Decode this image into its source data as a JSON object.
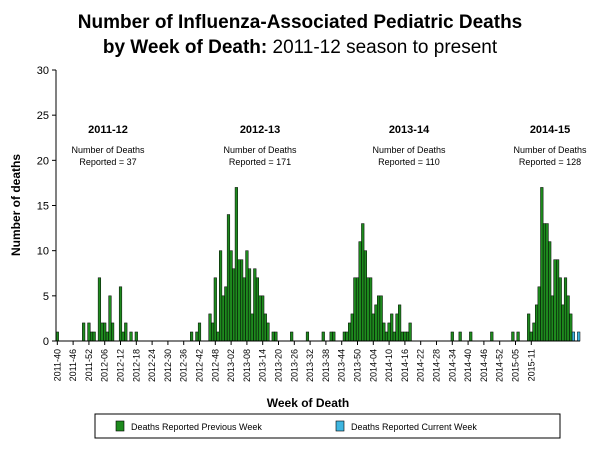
{
  "title": {
    "line1": "Number of Influenza-Associated Pediatric Deaths",
    "line2_bold": "by Week of Death:",
    "line2_rest": " 2011-12 season to present"
  },
  "chart_data": {
    "type": "bar",
    "ylabel": "Number of deaths",
    "xlabel": "Week of Death",
    "ylim": [
      0,
      30
    ],
    "yticks": [
      0,
      5,
      10,
      15,
      20,
      25,
      30
    ],
    "grid": false,
    "x_tick_labels": [
      "2011-40",
      "2011-46",
      "2011-52",
      "2012-06",
      "2012-12",
      "2012-18",
      "2012-24",
      "2012-30",
      "2012-36",
      "2012-42",
      "2012-48",
      "2013-02",
      "2013-08",
      "2013-14",
      "2013-20",
      "2013-26",
      "2013-32",
      "2013-38",
      "2013-44",
      "2013-50",
      "2014-04",
      "2014-10",
      "2014-16",
      "2014-22",
      "2014-28",
      "2014-34",
      "2014-40",
      "2014-46",
      "2014-52",
      "2015-05",
      "2015-11"
    ],
    "series": [
      {
        "name": "Deaths Reported Previous Week",
        "color": "#1e8a1e",
        "values": [
          1,
          0,
          0,
          0,
          0,
          0,
          0,
          0,
          0,
          0,
          2,
          0,
          2,
          1,
          1,
          0,
          7,
          2,
          2,
          1,
          5,
          2,
          0,
          0,
          6,
          1,
          2,
          0,
          1,
          0,
          1,
          0,
          0,
          0,
          0,
          0,
          0,
          0,
          0,
          0,
          0,
          0,
          0,
          0,
          0,
          0,
          0,
          0,
          0,
          0,
          0,
          1,
          0,
          1,
          2,
          0,
          0,
          0,
          3,
          2,
          7,
          1,
          10,
          5,
          6,
          14,
          10,
          8,
          17,
          9,
          9,
          7,
          10,
          8,
          3,
          8,
          7,
          5,
          5,
          3,
          2,
          0,
          1,
          1,
          0,
          0,
          0,
          0,
          0,
          1,
          0,
          0,
          0,
          0,
          0,
          1,
          0,
          0,
          0,
          0,
          0,
          1,
          0,
          0,
          1,
          1,
          0,
          0,
          0,
          1,
          1,
          2,
          3,
          7,
          7,
          11,
          13,
          10,
          7,
          7,
          3,
          4,
          5,
          5,
          2,
          1,
          2,
          3,
          1,
          3,
          4,
          1,
          1,
          1,
          2,
          0,
          0,
          0,
          0,
          0,
          0,
          0,
          0,
          0,
          0,
          0,
          0,
          0,
          0,
          0,
          1,
          0,
          0,
          1,
          0,
          0,
          0,
          1,
          0,
          0,
          0,
          0,
          0,
          0,
          0,
          1,
          0,
          0,
          0,
          0,
          0,
          0,
          0,
          1,
          0,
          1,
          0,
          0,
          0,
          3,
          1,
          2,
          4,
          6,
          17,
          13,
          13,
          11,
          5,
          9,
          9,
          7,
          4,
          7,
          5,
          3,
          0,
          0,
          0
        ]
      },
      {
        "name": "Deaths Reported Current Week",
        "color": "#3fb6e0",
        "values": [
          0,
          0,
          0,
          0,
          0,
          0,
          0,
          0,
          0,
          0,
          0,
          0,
          0,
          0,
          0,
          0,
          0,
          0,
          0,
          0,
          0,
          0,
          0,
          0,
          0,
          0,
          0,
          0,
          0,
          0,
          0,
          0,
          0,
          0,
          0,
          0,
          0,
          0,
          0,
          0,
          0,
          0,
          0,
          0,
          0,
          0,
          0,
          0,
          0,
          0,
          0,
          0,
          0,
          0,
          0,
          0,
          0,
          0,
          0,
          0,
          0,
          0,
          0,
          0,
          0,
          0,
          0,
          0,
          0,
          0,
          0,
          0,
          0,
          0,
          0,
          0,
          0,
          0,
          0,
          0,
          0,
          0,
          0,
          0,
          0,
          0,
          0,
          0,
          0,
          0,
          0,
          0,
          0,
          0,
          0,
          0,
          0,
          0,
          0,
          0,
          0,
          0,
          0,
          0,
          0,
          0,
          0,
          0,
          0,
          0,
          0,
          0,
          0,
          0,
          0,
          0,
          0,
          0,
          0,
          0,
          0,
          0,
          0,
          0,
          0,
          0,
          0,
          0,
          0,
          0,
          0,
          0,
          0,
          0,
          0,
          0,
          0,
          0,
          0,
          0,
          0,
          0,
          0,
          0,
          0,
          0,
          0,
          0,
          0,
          0,
          0,
          0,
          0,
          0,
          0,
          0,
          0,
          0,
          0,
          0,
          0,
          0,
          0,
          0,
          0,
          0,
          0,
          0,
          0,
          0,
          0,
          0,
          0,
          0,
          0,
          0,
          0,
          0,
          0,
          0,
          0,
          0,
          0,
          0,
          0,
          0,
          0,
          0,
          0,
          0,
          0,
          0,
          0,
          0,
          0,
          0,
          1,
          0,
          1,
          1
        ]
      }
    ],
    "annotations": [
      {
        "season": "2011-12",
        "line1": "Number of Deaths",
        "line2": "Reported = 37"
      },
      {
        "season": "2012-13",
        "line1": "Number of Deaths",
        "line2": "Reported = 171"
      },
      {
        "season": "2013-14",
        "line1": "Number of Deaths",
        "line2": "Reported = 110"
      },
      {
        "season": "2014-15",
        "line1": "Number of Deaths",
        "line2": "Reported = 128"
      }
    ],
    "legend": {
      "placement": "bottom",
      "items": [
        {
          "label": "Deaths Reported Previous Week",
          "color": "#1e8a1e"
        },
        {
          "label": "Deaths Reported Current Week",
          "color": "#3fb6e0"
        }
      ]
    }
  }
}
